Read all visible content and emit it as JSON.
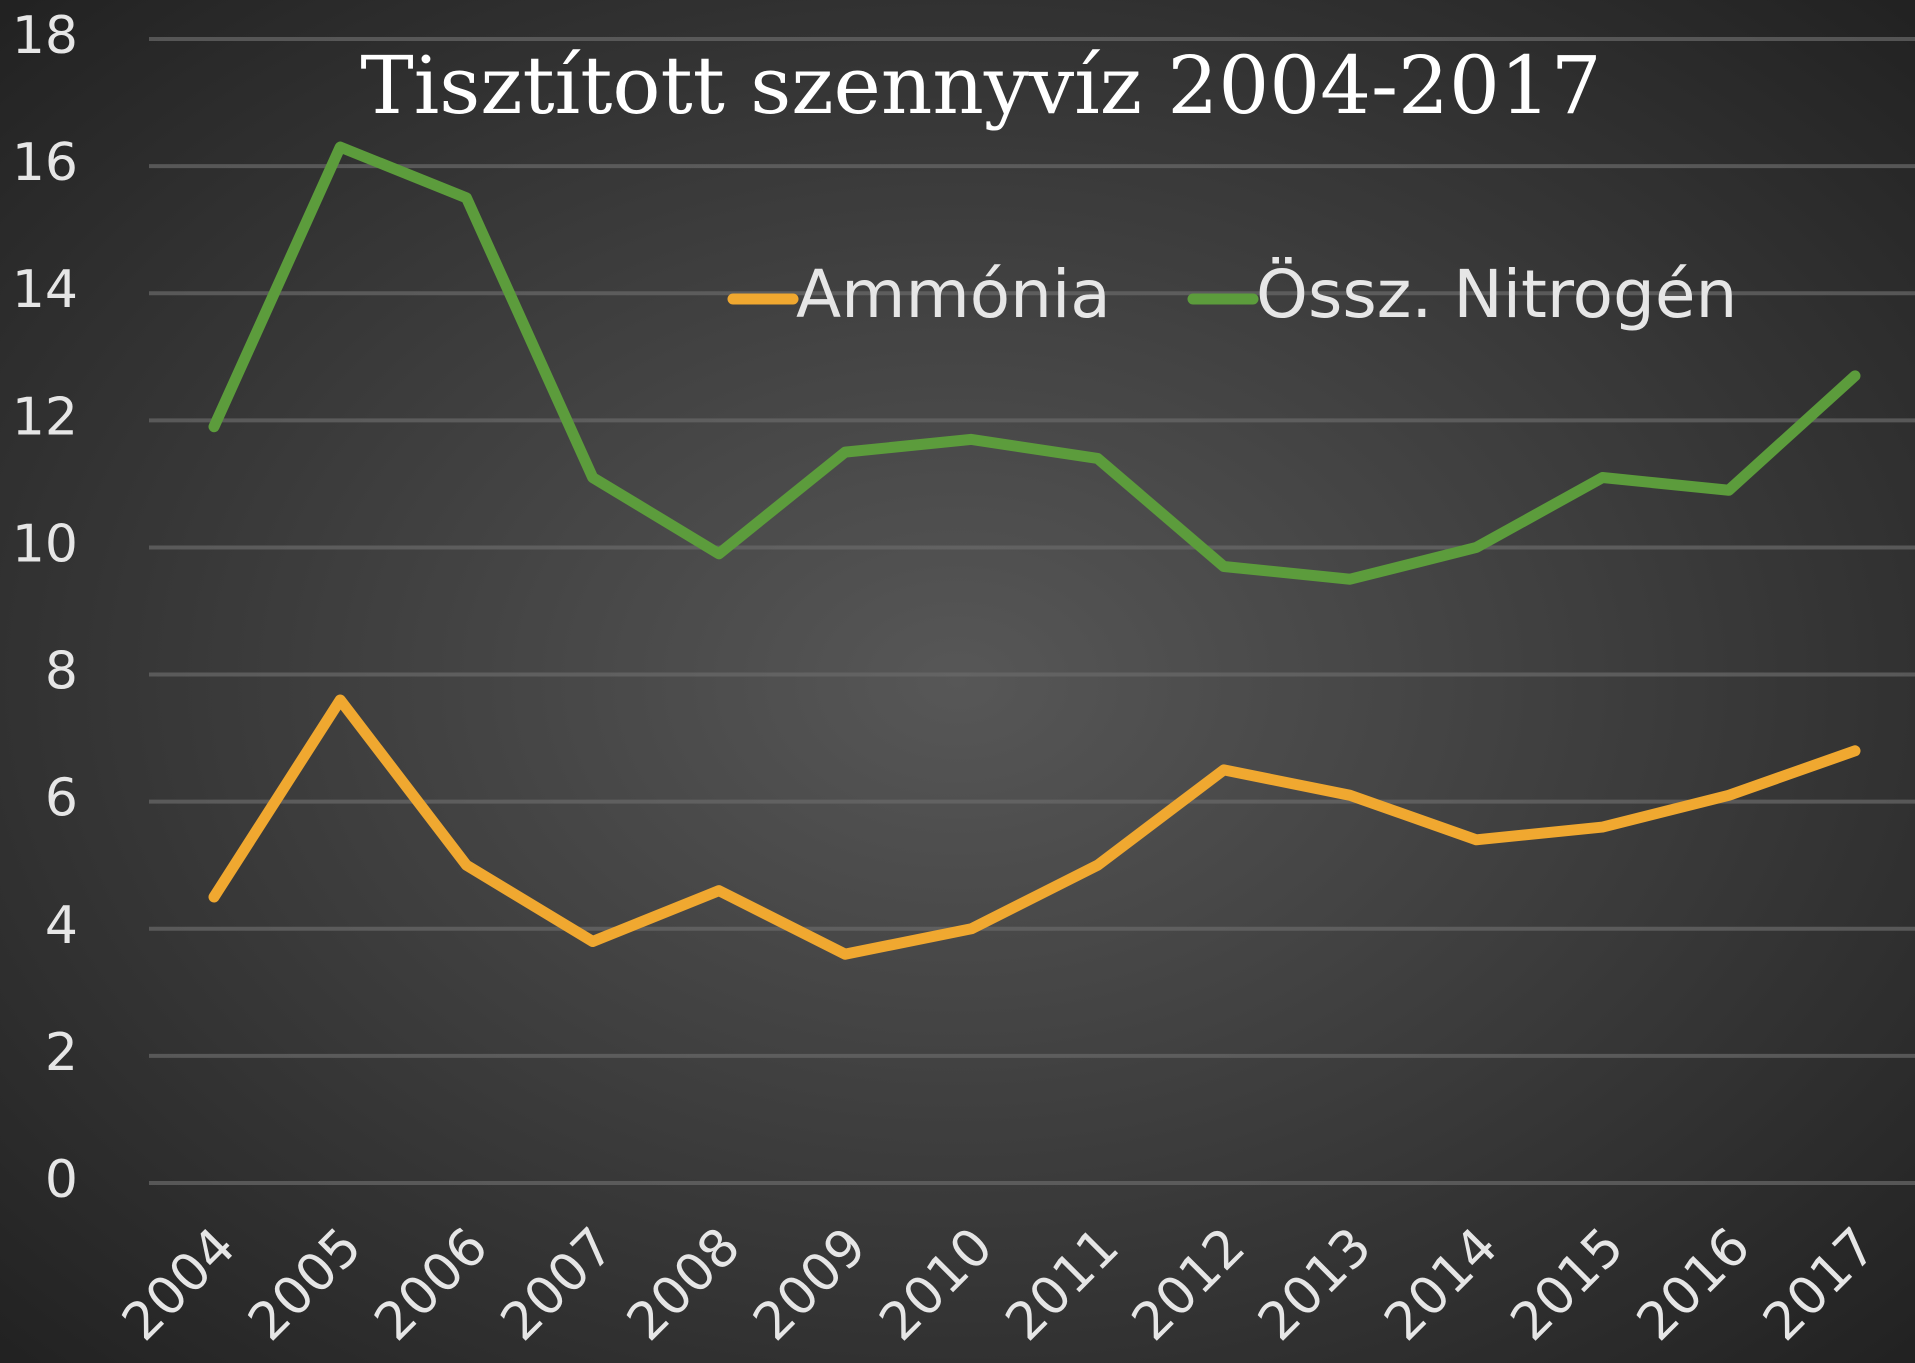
{
  "chart_data": {
    "type": "line",
    "title": "Tisztított szennyvíz 2004-2017",
    "categories": [
      "2004",
      "2005",
      "2006",
      "2007",
      "2008",
      "2009",
      "2010",
      "2011",
      "2012",
      "2013",
      "2014",
      "2015",
      "2016",
      "2017"
    ],
    "series": [
      {
        "name": "Ammónia",
        "color": "#f0a830",
        "values": [
          4.5,
          7.6,
          5.0,
          3.8,
          4.6,
          3.6,
          4.0,
          5.0,
          6.5,
          6.1,
          5.4,
          5.6,
          6.1,
          6.8
        ]
      },
      {
        "name": "Össz. Nitrogén",
        "color": "#5c9c3c",
        "values": [
          11.9,
          16.3,
          15.5,
          11.1,
          9.9,
          11.5,
          11.7,
          11.4,
          9.7,
          9.5,
          10.0,
          11.1,
          10.9,
          12.7
        ]
      }
    ],
    "ylim": [
      0,
      18
    ],
    "yticks": [
      0,
      2,
      4,
      6,
      8,
      10,
      12,
      14,
      16,
      18
    ],
    "grid": true
  }
}
